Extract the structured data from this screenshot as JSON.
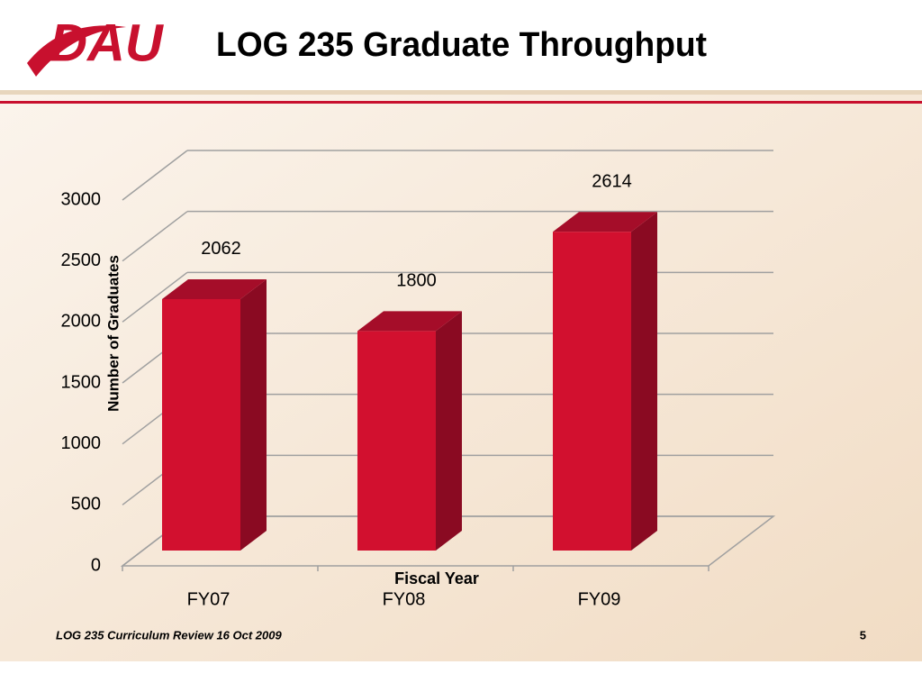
{
  "header": {
    "logo": "DAU",
    "title": "LOG 235 Graduate Throughput"
  },
  "chart_data": {
    "type": "bar3d",
    "categories": [
      "FY07",
      "FY08",
      "FY09"
    ],
    "values": [
      2062,
      1800,
      2614
    ],
    "color": "#d2102f",
    "ylim": [
      0,
      3000
    ],
    "yticks": [
      0,
      500,
      1000,
      1500,
      2000,
      2500,
      3000
    ],
    "y_label": "Number of Graduates",
    "x_label": "Fiscal Year",
    "grid": true
  },
  "footer": {
    "text": "LOG 235 Curriculum Review 16 Oct 2009",
    "page": "5"
  }
}
